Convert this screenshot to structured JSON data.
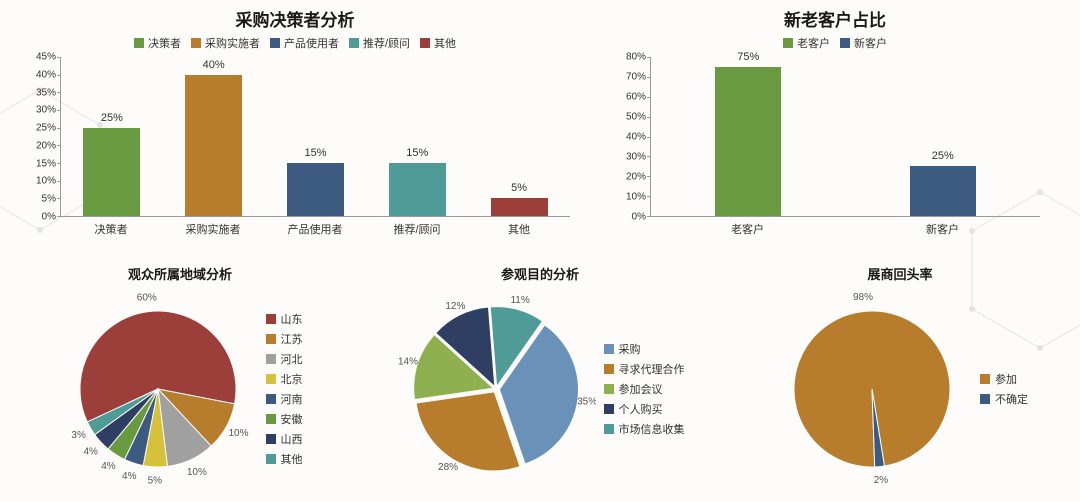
{
  "bar1": {
    "title": "采购决策者分析",
    "categories": [
      "决策者",
      "采购实施者",
      "产品使用者",
      "推荐/顾问",
      "其他"
    ],
    "values": [
      25,
      40,
      15,
      15,
      5
    ],
    "value_labels": [
      "25%",
      "40%",
      "15%",
      "15%",
      "5%"
    ],
    "colors": [
      "#6a9a3f",
      "#b77d2d",
      "#3d5a80",
      "#4f9b98",
      "#9c3e3a"
    ],
    "ylim": [
      0,
      45
    ],
    "ytick_step": 5,
    "ytick_suffix": "%",
    "title_fontsize": 17,
    "label_fontsize": 11,
    "background_color": "#fdfcfa"
  },
  "bar2": {
    "title": "新老客户占比",
    "categories": [
      "老客户",
      "新客户"
    ],
    "values": [
      75,
      25
    ],
    "value_labels": [
      "75%",
      "25%"
    ],
    "colors": [
      "#6a9a3f",
      "#3d5a80"
    ],
    "ylim": [
      0,
      80
    ],
    "ytick_step": 10,
    "ytick_suffix": "%",
    "title_fontsize": 17,
    "label_fontsize": 11,
    "background_color": "#fdfcfa"
  },
  "pie1": {
    "title": "观众所属地域分析",
    "labels": [
      "山东",
      "江苏",
      "河北",
      "北京",
      "河南",
      "安徽",
      "山西",
      "其他"
    ],
    "values": [
      60,
      10,
      10,
      5,
      4,
      4,
      4,
      3
    ],
    "value_labels": [
      "60%",
      "10%",
      "10%",
      "5%",
      "4%",
      "4%",
      "4%",
      "3%"
    ],
    "colors": [
      "#9c3e3a",
      "#b77d2d",
      "#a0a0a0",
      "#d6c23a",
      "#3d5a80",
      "#6a9a3f",
      "#2f3e63",
      "#4f9b98"
    ],
    "start_angle": 155,
    "radius": 78,
    "label_fontsize": 10,
    "title_fontsize": 13
  },
  "pie2": {
    "title": "参观目的分析",
    "labels": [
      "采购",
      "寻求代理合作",
      "参加会议",
      "个人购买",
      "市场信息收集"
    ],
    "values": [
      35,
      28,
      14,
      12,
      11
    ],
    "value_labels": [
      "35%",
      "28%",
      "14%",
      "12%",
      "11%"
    ],
    "colors": [
      "#6a92b8",
      "#b77d2d",
      "#8fb04f",
      "#2f3e63",
      "#4f9b98"
    ],
    "start_angle": -55,
    "radius": 78,
    "label_fontsize": 10,
    "title_fontsize": 13
  },
  "pie3": {
    "title": "展商回头率",
    "labels": [
      "参加",
      "不确定"
    ],
    "values": [
      98,
      2
    ],
    "value_labels": [
      "98%",
      "2%"
    ],
    "colors": [
      "#b77d2d",
      "#3d5a80"
    ],
    "start_angle": 88,
    "radius": 78,
    "label_fontsize": 10,
    "title_fontsize": 13
  }
}
